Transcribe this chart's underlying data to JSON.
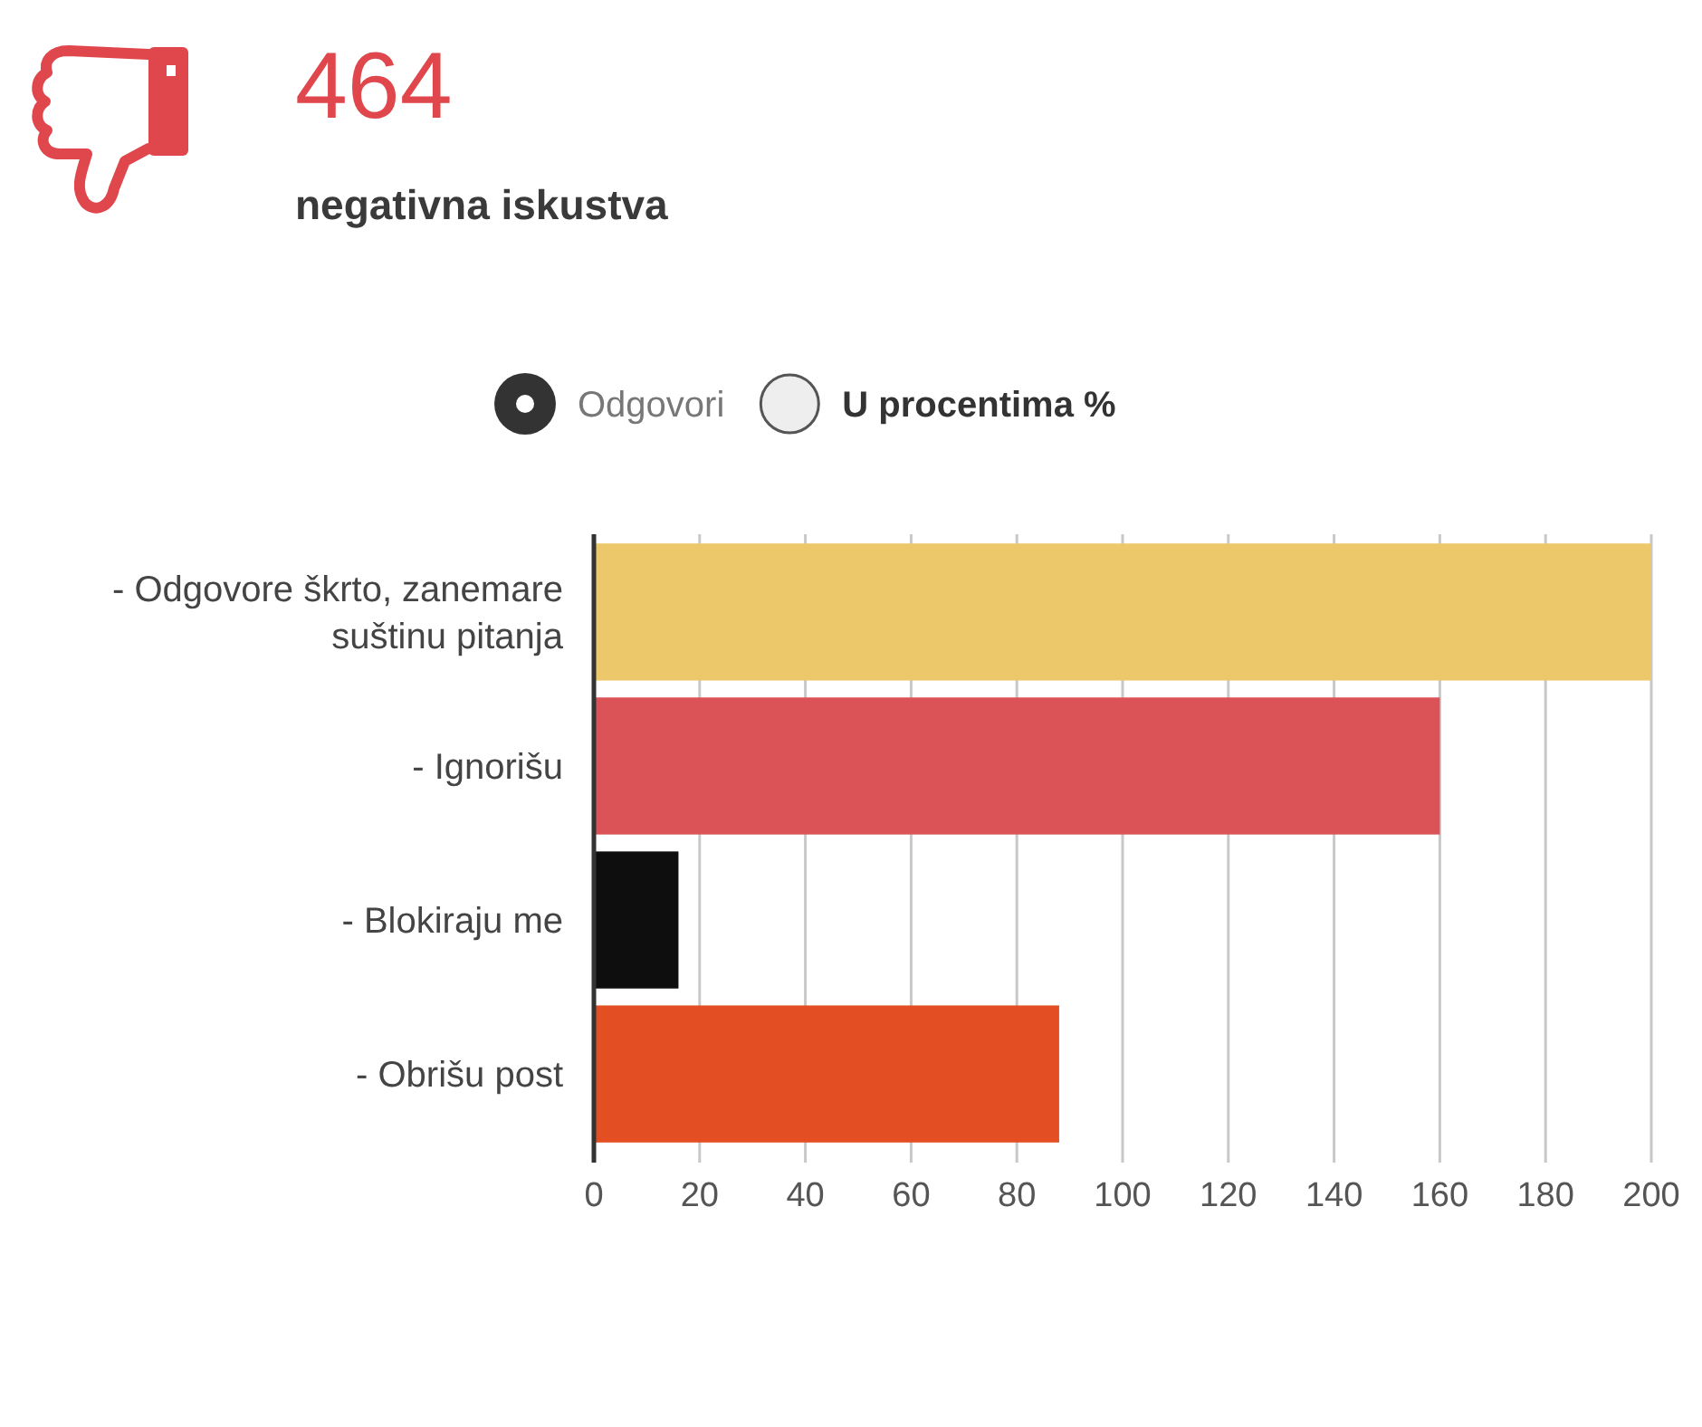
{
  "chart_data": {
    "type": "bar",
    "title": "464",
    "subtitle": "negativna iskustva",
    "orientation": "horizontal",
    "categories": [
      "- Odgovore škrto, zanemare suštinu pitanja",
      "- Ignorišu",
      "- Blokiraju me",
      "- Obrišu post"
    ],
    "values": [
      200,
      160,
      16,
      88
    ],
    "colors": [
      "#ecc86a",
      "#db5257",
      "#0e0e0e",
      "#e34f22"
    ],
    "xlim": [
      0,
      200
    ],
    "xticks": [
      0,
      20,
      40,
      60,
      80,
      100,
      120,
      140,
      160,
      180,
      200
    ],
    "grid": "x",
    "annotations": [
      "Odgovori",
      "U procentima %"
    ]
  }
}
